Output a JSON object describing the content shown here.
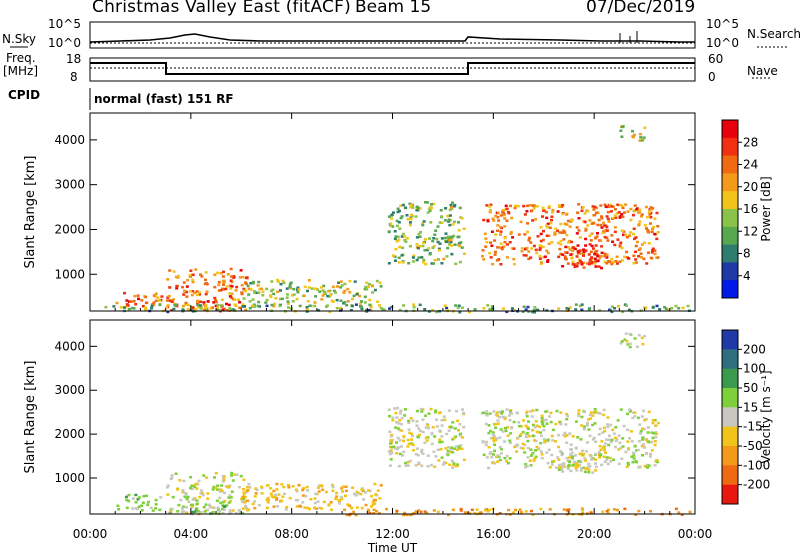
{
  "header": {
    "title": "Christmas Valley East (fitACF)",
    "beam": "Beam 15",
    "date": "07/Dec/2019"
  },
  "top_panels": {
    "nsky_label": "N.Sky",
    "nsearch_label": "N.Search",
    "noise_ticks": [
      "10^5",
      "10^0"
    ],
    "freq_label_line1": "Freq.",
    "freq_label_line2": "[MHz]",
    "freq_ticks": [
      "18",
      "8"
    ],
    "nave_label": "Nave",
    "nave_ticks": [
      "60",
      "0"
    ],
    "cpid_label": "CPID",
    "cpid_text": "normal (fast) 151 RF"
  },
  "colors": {
    "power": [
      "#0018e8",
      "#1f3aa6",
      "#2e7d6e",
      "#58a850",
      "#8bc34a",
      "#f2c41a",
      "#f39a1a",
      "#f06a12",
      "#f03010",
      "#e8000c"
    ],
    "velocity": [
      "#1f3aa6",
      "#2e6e7e",
      "#3a9a4e",
      "#7ed03a",
      "#c8c8c0",
      "#f2c41a",
      "#f39a1a",
      "#f06a12",
      "#e81810"
    ]
  },
  "chart_data": [
    {
      "type": "heatmap",
      "name": "power",
      "ylabel": "Slant Range [km]",
      "xlabel": "",
      "colorbar_label": "Power [dB]",
      "colorbar_ticks": [
        4,
        8,
        12,
        16,
        20,
        24,
        28
      ],
      "x_ticks": [
        "00:00",
        "04:00",
        "08:00",
        "12:00",
        "16:00",
        "20:00",
        "00:00"
      ],
      "y_ticks": [
        1000,
        2000,
        3000,
        4000
      ],
      "xlim_hours": [
        0,
        24
      ],
      "ylim_km": [
        180,
        4600
      ],
      "regions": [
        {
          "t0": 1.0,
          "t1": 2.8,
          "r0": 280,
          "r1": 650,
          "level": 0.8
        },
        {
          "t0": 3.0,
          "t1": 6.2,
          "r0": 200,
          "r1": 1150,
          "level": 0.75
        },
        {
          "t0": 4.0,
          "t1": 5.5,
          "r0": 200,
          "r1": 450,
          "level": 0.95
        },
        {
          "t0": 6.0,
          "t1": 11.5,
          "r0": 300,
          "r1": 900,
          "level": 0.45
        },
        {
          "t0": 11.8,
          "t1": 14.8,
          "r0": 1250,
          "r1": 2650,
          "level": 0.4
        },
        {
          "t0": 15.5,
          "t1": 22.5,
          "r0": 1250,
          "r1": 2600,
          "level": 0.75
        },
        {
          "t0": 18.5,
          "t1": 20.5,
          "r0": 1150,
          "r1": 1700,
          "level": 0.95
        },
        {
          "t0": 21.0,
          "t1": 22.0,
          "r0": 4000,
          "r1": 4350,
          "level": 0.5
        },
        {
          "t0": 0.5,
          "t1": 23.8,
          "r0": 180,
          "r1": 350,
          "level": 0.35
        }
      ]
    },
    {
      "type": "heatmap",
      "name": "velocity",
      "ylabel": "Slant Range [km]",
      "xlabel": "Time UT",
      "colorbar_label": "Velocity [m s⁻¹]",
      "colorbar_ticks": [
        200,
        100,
        50,
        15,
        -15,
        -50,
        -100,
        -200
      ],
      "x_ticks": [
        "00:00",
        "04:00",
        "08:00",
        "12:00",
        "16:00",
        "20:00",
        "00:00"
      ],
      "y_ticks": [
        1000,
        2000,
        3000,
        4000
      ],
      "xlim_hours": [
        0,
        24
      ],
      "ylim_km": [
        180,
        4600
      ],
      "regions": [
        {
          "t0": 1.0,
          "t1": 2.8,
          "r0": 280,
          "r1": 650,
          "level": 3
        },
        {
          "t0": 3.0,
          "t1": 6.2,
          "r0": 200,
          "r1": 1150,
          "level": 4
        },
        {
          "t0": 4.0,
          "t1": 5.5,
          "r0": 200,
          "r1": 450,
          "level": 3
        },
        {
          "t0": 6.0,
          "t1": 11.5,
          "r0": 300,
          "r1": 900,
          "level": 5
        },
        {
          "t0": 11.8,
          "t1": 14.8,
          "r0": 1250,
          "r1": 2650,
          "level": 4
        },
        {
          "t0": 15.5,
          "t1": 22.5,
          "r0": 1250,
          "r1": 2600,
          "level": 4
        },
        {
          "t0": 18.5,
          "t1": 20.5,
          "r0": 1150,
          "r1": 1700,
          "level": 4
        },
        {
          "t0": 21.0,
          "t1": 22.0,
          "r0": 4000,
          "r1": 4350,
          "level": 4
        },
        {
          "t0": 10.0,
          "t1": 23.8,
          "r0": 180,
          "r1": 330,
          "level": 6
        }
      ]
    }
  ]
}
